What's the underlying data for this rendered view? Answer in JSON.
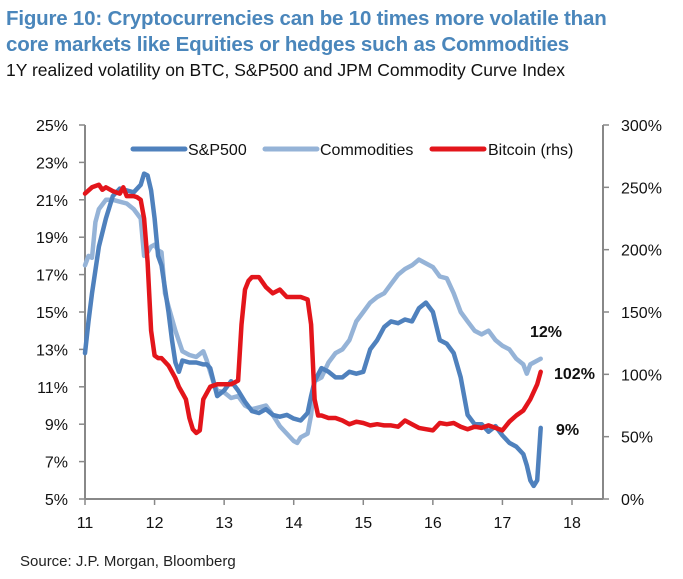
{
  "header": {
    "title_line1": "Figure 10: Cryptocurrencies can be 10 times more volatile than",
    "title_line2": "core markets like Equities or hedges such as Commodities",
    "subtitle": "1Y realized volatility on BTC, S&P500 and JPM Commodity Curve Index"
  },
  "footer": {
    "source": "Source: J.P. Morgan, Bloomberg"
  },
  "chart_data": {
    "type": "line",
    "title": "Figure 10: Cryptocurrencies can be 10 times more volatile than core markets like Equities or hedges such as Commodities",
    "subtitle": "1Y realized volatility on BTC, S&P500 and JPM Commodity Curve Index",
    "xlabel": "",
    "ylabel": "",
    "y2label": "",
    "x_ticks": [
      "11",
      "12",
      "13",
      "14",
      "15",
      "16",
      "17",
      "18"
    ],
    "xlim": [
      11,
      18.2
    ],
    "ylim": [
      5,
      25
    ],
    "y2lim": [
      0,
      300
    ],
    "y_ticks": [
      "5%",
      "7%",
      "9%",
      "11%",
      "13%",
      "15%",
      "17%",
      "19%",
      "21%",
      "23%",
      "25%"
    ],
    "y2_ticks": [
      "0%",
      "50%",
      "100%",
      "150%",
      "200%",
      "250%",
      "300%"
    ],
    "grid": false,
    "legend_position": "top",
    "series": [
      {
        "name": "S&P500",
        "axis": "left",
        "color": "#4f81bd",
        "x": [
          11.0,
          11.05,
          11.1,
          11.2,
          11.3,
          11.4,
          11.5,
          11.6,
          11.7,
          11.8,
          11.85,
          11.9,
          11.95,
          12.0,
          12.05,
          12.1,
          12.2,
          12.25,
          12.3,
          12.35,
          12.4,
          12.5,
          12.6,
          12.7,
          12.75,
          12.8,
          12.9,
          13.0,
          13.1,
          13.2,
          13.3,
          13.4,
          13.5,
          13.6,
          13.7,
          13.8,
          13.9,
          14.0,
          14.1,
          14.2,
          14.25,
          14.3,
          14.4,
          14.5,
          14.6,
          14.7,
          14.8,
          14.9,
          15.0,
          15.1,
          15.2,
          15.3,
          15.4,
          15.5,
          15.6,
          15.7,
          15.8,
          15.9,
          16.0,
          16.1,
          16.2,
          16.3,
          16.4,
          16.5,
          16.6,
          16.7,
          16.8,
          16.9,
          17.0,
          17.1,
          17.2,
          17.3,
          17.35,
          17.4,
          17.45,
          17.5,
          17.55
        ],
        "values": [
          12.8,
          14.5,
          16.0,
          18.5,
          20.0,
          21.2,
          21.6,
          21.5,
          21.4,
          21.8,
          22.4,
          22.3,
          21.5,
          20.0,
          18.0,
          17.5,
          15.0,
          13.5,
          12.3,
          11.8,
          12.4,
          12.3,
          12.3,
          12.2,
          12.2,
          12.0,
          10.5,
          10.8,
          11.3,
          10.8,
          10.2,
          9.7,
          9.6,
          9.8,
          9.5,
          9.4,
          9.5,
          9.3,
          9.2,
          9.6,
          10.5,
          11.3,
          12.0,
          11.8,
          11.5,
          11.5,
          11.8,
          11.7,
          11.8,
          13.0,
          13.5,
          14.2,
          14.5,
          14.4,
          14.6,
          14.5,
          15.2,
          15.5,
          15.0,
          13.5,
          13.3,
          12.8,
          11.5,
          9.5,
          9.0,
          9.0,
          8.6,
          8.9,
          8.4,
          8.0,
          7.8,
          7.4,
          6.8,
          6.0,
          5.7,
          6.0,
          8.8
        ]
      },
      {
        "name": "Commodities",
        "axis": "left",
        "color": "#95b3d7",
        "x": [
          11.0,
          11.05,
          11.1,
          11.15,
          11.2,
          11.3,
          11.4,
          11.5,
          11.6,
          11.7,
          11.8,
          11.85,
          11.9,
          11.95,
          12.0,
          12.05,
          12.1,
          12.15,
          12.2,
          12.3,
          12.4,
          12.5,
          12.6,
          12.7,
          12.75,
          12.8,
          12.85,
          12.9,
          13.0,
          13.1,
          13.2,
          13.3,
          13.4,
          13.5,
          13.6,
          13.7,
          13.8,
          13.9,
          14.0,
          14.05,
          14.1,
          14.2,
          14.25,
          14.3,
          14.4,
          14.5,
          14.6,
          14.7,
          14.8,
          14.9,
          15.0,
          15.1,
          15.2,
          15.3,
          15.4,
          15.5,
          15.6,
          15.7,
          15.8,
          15.9,
          16.0,
          16.1,
          16.2,
          16.3,
          16.4,
          16.5,
          16.6,
          16.7,
          16.8,
          16.9,
          17.0,
          17.1,
          17.2,
          17.3,
          17.35,
          17.4,
          17.5,
          17.55
        ],
        "values": [
          17.5,
          18.0,
          17.9,
          19.8,
          20.5,
          21.0,
          21.0,
          20.9,
          20.8,
          20.5,
          20.0,
          18.0,
          18.2,
          18.5,
          18.6,
          18.3,
          18.2,
          16.0,
          15.3,
          14.0,
          12.9,
          12.7,
          12.6,
          12.9,
          12.4,
          11.8,
          11.2,
          10.8,
          10.7,
          10.4,
          10.5,
          10.0,
          9.8,
          9.9,
          10.0,
          9.5,
          8.9,
          8.5,
          8.1,
          8.0,
          8.3,
          8.5,
          9.5,
          11.3,
          11.5,
          12.3,
          12.8,
          13.0,
          13.5,
          14.5,
          15.0,
          15.5,
          15.8,
          16.0,
          16.5,
          17.0,
          17.3,
          17.5,
          17.8,
          17.6,
          17.4,
          16.9,
          16.8,
          16.0,
          15.0,
          14.5,
          14.0,
          13.8,
          14.0,
          13.5,
          13.2,
          13.0,
          12.5,
          12.2,
          11.7,
          12.2,
          12.4,
          12.5
        ]
      },
      {
        "name": "Bitcoin (rhs)",
        "axis": "right",
        "color": "#e3151b",
        "x": [
          11.0,
          11.1,
          11.2,
          11.25,
          11.3,
          11.4,
          11.5,
          11.55,
          11.6,
          11.7,
          11.75,
          11.8,
          11.85,
          11.9,
          11.95,
          12.0,
          12.05,
          12.1,
          12.2,
          12.3,
          12.35,
          12.4,
          12.45,
          12.5,
          12.55,
          12.6,
          12.65,
          12.7,
          12.8,
          12.9,
          13.0,
          13.1,
          13.2,
          13.25,
          13.3,
          13.35,
          13.4,
          13.5,
          13.6,
          13.7,
          13.8,
          13.9,
          14.0,
          14.1,
          14.2,
          14.25,
          14.3,
          14.35,
          14.4,
          14.5,
          14.6,
          14.7,
          14.8,
          14.9,
          15.0,
          15.1,
          15.2,
          15.3,
          15.4,
          15.5,
          15.6,
          15.7,
          15.8,
          15.9,
          16.0,
          16.1,
          16.2,
          16.3,
          16.4,
          16.5,
          16.6,
          16.7,
          16.8,
          16.9,
          17.0,
          17.1,
          17.2,
          17.3,
          17.4,
          17.5,
          17.55
        ],
        "values": [
          245,
          250,
          252,
          248,
          250,
          247,
          245,
          250,
          243,
          243,
          242,
          240,
          225,
          190,
          135,
          115,
          113,
          113,
          107,
          97,
          90,
          85,
          80,
          65,
          56,
          53,
          55,
          80,
          90,
          92,
          92,
          92,
          95,
          140,
          168,
          175,
          178,
          178,
          170,
          165,
          168,
          162,
          162,
          162,
          160,
          140,
          80,
          67,
          67,
          65,
          65,
          63,
          60,
          62,
          61,
          59,
          60,
          59,
          59,
          58,
          63,
          60,
          57,
          56,
          55,
          61,
          60,
          61,
          58,
          56,
          58,
          57,
          59,
          57,
          55,
          62,
          67,
          71,
          80,
          92,
          102
        ]
      }
    ],
    "annotations": [
      {
        "text": "12%",
        "series": "Commodities"
      },
      {
        "text": "102%",
        "series": "Bitcoin (rhs)"
      },
      {
        "text": "9%",
        "series": "S&P500"
      }
    ]
  }
}
